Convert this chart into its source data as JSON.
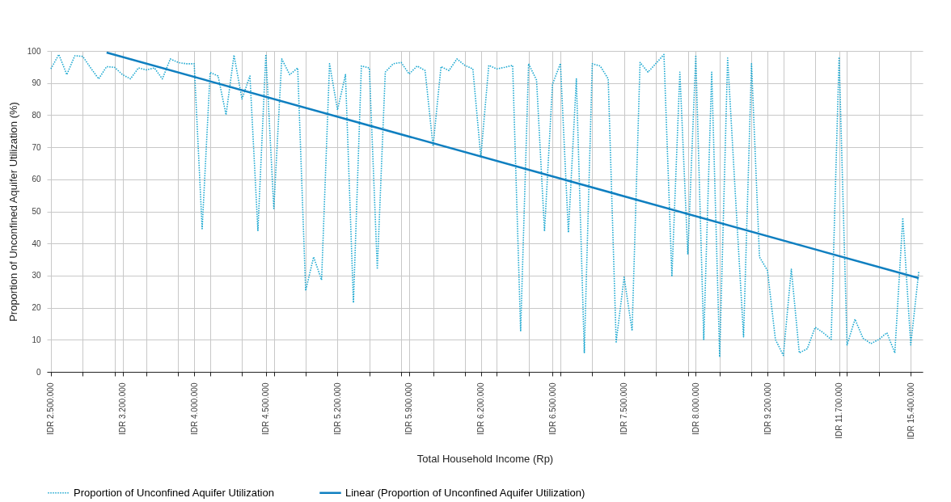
{
  "chart_data": {
    "type": "line",
    "xlabel": "Total Household Income (Rp)",
    "ylabel": "Proportion of Unconfined Aquifer Utilization (%)",
    "categories": [
      "IDR 2.500.000",
      null,
      null,
      null,
      null,
      null,
      null,
      null,
      null,
      "IDR 3.200.000",
      null,
      null,
      null,
      null,
      null,
      null,
      null,
      null,
      "IDR 4.000.000",
      null,
      null,
      null,
      null,
      null,
      null,
      null,
      null,
      "IDR 4.500.000",
      null,
      null,
      null,
      null,
      null,
      null,
      null,
      null,
      "IDR 5.200.000",
      null,
      null,
      null,
      null,
      null,
      null,
      null,
      null,
      "IDR 5.900.000",
      null,
      null,
      null,
      null,
      null,
      null,
      null,
      null,
      "IDR 6.200.000",
      null,
      null,
      null,
      null,
      null,
      null,
      null,
      null,
      "IDR 6.500.000",
      null,
      null,
      null,
      null,
      null,
      null,
      null,
      null,
      "IDR 7.500.000",
      null,
      null,
      null,
      null,
      null,
      null,
      null,
      null,
      "IDR 8.000.000",
      null,
      null,
      null,
      null,
      null,
      null,
      null,
      null,
      "IDR 9.200.000",
      null,
      null,
      null,
      null,
      null,
      null,
      null,
      null,
      "IDR 11.700.000",
      null,
      null,
      null,
      null,
      null,
      null,
      null,
      null,
      "IDR 15.400.000",
      null
    ],
    "series": [
      {
        "name": "Proportion of Unconfined Aquifer Utilization",
        "color": "#1aa7d0",
        "line_style": "dotted",
        "values": [
          94.4,
          98.9,
          92.6,
          98.5,
          98.3,
          94.7,
          91.3,
          95.1,
          94.9,
          92.6,
          91.3,
          94.7,
          94.1,
          94.7,
          91.3,
          97.5,
          96.4,
          96,
          96,
          44.6,
          93.3,
          92.2,
          80.1,
          98.7,
          85,
          92.2,
          44,
          98.9,
          50.9,
          97.5,
          92.6,
          94.7,
          25.3,
          35.8,
          28.6,
          96,
          81.6,
          92.6,
          21.5,
          95.3,
          94.7,
          32,
          93.4,
          96,
          96.4,
          92.8,
          95.3,
          93.9,
          70.3,
          95.1,
          93.9,
          97.5,
          95.5,
          94.4,
          66.9,
          95.5,
          94.4,
          94.9,
          95.5,
          12.6,
          96,
          90.9,
          43.8,
          89.6,
          96.1,
          43.4,
          91.3,
          6,
          96,
          95.3,
          91.3,
          9.3,
          29.5,
          12.8,
          96.4,
          93.4,
          96.1,
          98.9,
          29.7,
          93.4,
          36.6,
          98.7,
          10.1,
          93.4,
          4.6,
          97.8,
          54,
          10.9,
          96,
          35.8,
          31.6,
          10.1,
          5.1,
          32,
          5.9,
          7.2,
          13.9,
          12.2,
          10.1,
          98.1,
          8.4,
          16.4,
          10.5,
          8.8,
          10.1,
          12.2,
          5.9,
          48,
          8.4,
          31.1
        ]
      },
      {
        "name": "Linear (Proportion of Unconfined Aquifer Utilization)",
        "color": "#0f7fc0",
        "line_style": "solid",
        "values": [
          null,
          null,
          null,
          null,
          null,
          null,
          null,
          99.5,
          null,
          null,
          null,
          null,
          null,
          null,
          null,
          null,
          null,
          null,
          null,
          null,
          null,
          null,
          null,
          null,
          null,
          null,
          null,
          null,
          null,
          null,
          null,
          null,
          null,
          null,
          null,
          null,
          null,
          null,
          null,
          null,
          null,
          null,
          null,
          null,
          null,
          null,
          null,
          null,
          null,
          null,
          null,
          null,
          null,
          null,
          null,
          null,
          null,
          null,
          null,
          null,
          null,
          null,
          null,
          null,
          null,
          null,
          null,
          null,
          null,
          null,
          null,
          null,
          null,
          null,
          null,
          null,
          null,
          null,
          null,
          null,
          null,
          null,
          null,
          null,
          null,
          null,
          null,
          null,
          null,
          null,
          null,
          null,
          null,
          null,
          null,
          null,
          null,
          null,
          null,
          null,
          null,
          null,
          null,
          null,
          null,
          null,
          null,
          null,
          null,
          29.2
        ]
      }
    ],
    "ylim": [
      0,
      100
    ],
    "yticks": [
      0,
      10,
      20,
      30,
      40,
      50,
      60,
      70,
      80,
      90,
      100
    ],
    "grid": true,
    "legend": "bottom"
  }
}
